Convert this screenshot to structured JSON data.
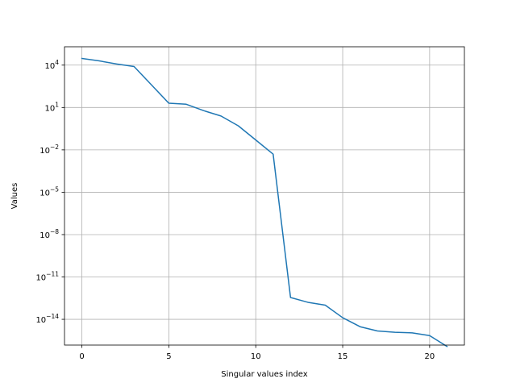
{
  "chart_data": {
    "type": "line",
    "title": "",
    "xlabel": "Singular values index",
    "ylabel": "Values",
    "yscale": "log",
    "grid": true,
    "xlim": [
      -1,
      22
    ],
    "ylim": [
      1.5e-16,
      200000.0
    ],
    "xticks": [
      0,
      5,
      10,
      15,
      20
    ],
    "yticks": [
      {
        "value": 10000.0,
        "mantissa": "10",
        "exponent": "4"
      },
      {
        "value": 10.0,
        "mantissa": "10",
        "exponent": "1"
      },
      {
        "value": 0.01,
        "mantissa": "10",
        "exponent": "−2"
      },
      {
        "value": 1e-05,
        "mantissa": "10",
        "exponent": "−5"
      },
      {
        "value": 1e-08,
        "mantissa": "10",
        "exponent": "−8"
      },
      {
        "value": 1e-11,
        "mantissa": "10",
        "exponent": "−11"
      },
      {
        "value": 1e-14,
        "mantissa": "10",
        "exponent": "−14"
      }
    ],
    "series": [
      {
        "color": "#1f77b4",
        "x": [
          0,
          1,
          2,
          3,
          4,
          5,
          6,
          7,
          8,
          9,
          10,
          11,
          12,
          13,
          14,
          15,
          16,
          17,
          18,
          19,
          20,
          21
        ],
        "y": [
          30000,
          20000,
          12000,
          8000,
          400,
          20,
          17,
          6,
          2.5,
          0.5,
          0.05,
          0.005,
          3.5e-13,
          1.6e-13,
          1e-13,
          1.3e-14,
          3e-15,
          1.5e-15,
          1.2e-15,
          1.1e-15,
          7e-16,
          1.2e-16
        ]
      }
    ]
  }
}
